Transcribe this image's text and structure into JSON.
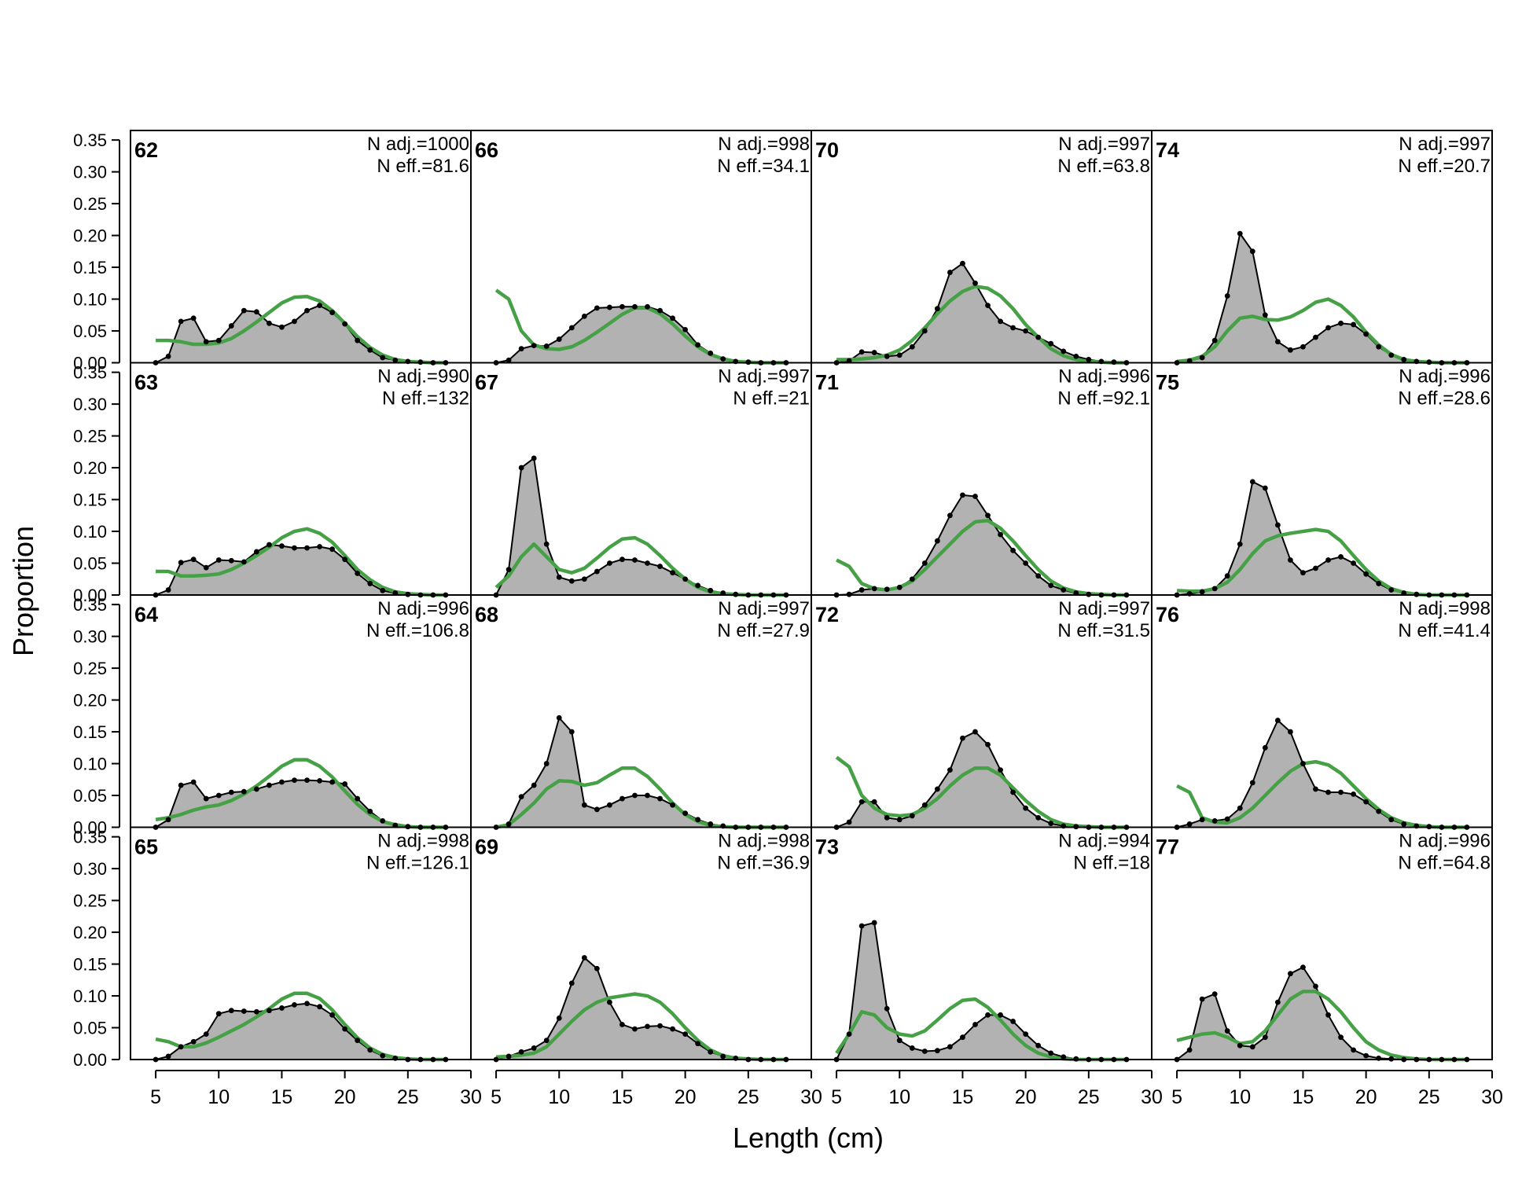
{
  "figure": {
    "xlabel": "Length (cm)",
    "ylabel": "Proportion",
    "background": "#ffffff",
    "colors": {
      "observed_fill": "#b2b2b2",
      "observed_line": "#000000",
      "expected_line": "#46a146",
      "zero_line": "#c8c8c8",
      "frame": "#000000"
    }
  },
  "chart_data": {
    "type": "area",
    "layout": {
      "rows": 4,
      "cols": 4,
      "order": "column-major"
    },
    "xlim": [
      3,
      30
    ],
    "ylim": [
      0,
      0.35
    ],
    "x_ticks": [
      5,
      10,
      15,
      20,
      25,
      30
    ],
    "y_ticks": [
      "0.00",
      "0.05",
      "0.10",
      "0.15",
      "0.20",
      "0.25",
      "0.30",
      "0.35"
    ],
    "x": [
      5,
      6,
      7,
      8,
      9,
      10,
      11,
      12,
      13,
      14,
      15,
      16,
      17,
      18,
      19,
      20,
      21,
      22,
      23,
      24,
      25,
      26,
      27,
      28
    ],
    "series_names": [
      "observed",
      "expected"
    ],
    "panels": [
      {
        "label": "62",
        "n_adj": "N adj.=1000",
        "n_eff": "N eff.=81.6",
        "observed": [
          0,
          0.01,
          0.065,
          0.07,
          0.033,
          0.035,
          0.058,
          0.082,
          0.08,
          0.062,
          0.056,
          0.065,
          0.082,
          0.09,
          0.079,
          0.061,
          0.035,
          0.02,
          0.008,
          0.004,
          0.002,
          0.001,
          0,
          0
        ],
        "expected": [
          0.035,
          0.035,
          0.033,
          0.029,
          0.029,
          0.031,
          0.038,
          0.05,
          0.064,
          0.079,
          0.094,
          0.103,
          0.104,
          0.097,
          0.082,
          0.062,
          0.041,
          0.024,
          0.012,
          0.005,
          0.002,
          0.001,
          0,
          0
        ]
      },
      {
        "label": "63",
        "n_adj": "N adj.=990",
        "n_eff": "N eff.=132",
        "observed": [
          0,
          0.008,
          0.051,
          0.056,
          0.043,
          0.055,
          0.054,
          0.052,
          0.068,
          0.079,
          0.077,
          0.074,
          0.074,
          0.076,
          0.072,
          0.056,
          0.034,
          0.018,
          0.007,
          0.003,
          0.001,
          0,
          0,
          0
        ],
        "expected": [
          0.037,
          0.037,
          0.03,
          0.03,
          0.031,
          0.033,
          0.04,
          0.05,
          0.062,
          0.075,
          0.09,
          0.1,
          0.104,
          0.097,
          0.083,
          0.062,
          0.04,
          0.024,
          0.012,
          0.005,
          0.002,
          0.001,
          0,
          0
        ]
      },
      {
        "label": "64",
        "n_adj": "N adj.=996",
        "n_eff": "N eff.=106.8",
        "observed": [
          0,
          0.012,
          0.066,
          0.071,
          0.045,
          0.05,
          0.055,
          0.056,
          0.06,
          0.066,
          0.071,
          0.074,
          0.074,
          0.073,
          0.071,
          0.068,
          0.045,
          0.025,
          0.01,
          0.003,
          0.001,
          0,
          0,
          0
        ],
        "expected": [
          0.012,
          0.015,
          0.02,
          0.027,
          0.032,
          0.035,
          0.042,
          0.052,
          0.065,
          0.08,
          0.096,
          0.106,
          0.106,
          0.096,
          0.079,
          0.057,
          0.036,
          0.02,
          0.009,
          0.004,
          0.001,
          0,
          0,
          0
        ]
      },
      {
        "label": "65",
        "n_adj": "N adj.=998",
        "n_eff": "N eff.=126.1",
        "observed": [
          0,
          0.005,
          0.02,
          0.028,
          0.04,
          0.072,
          0.077,
          0.076,
          0.075,
          0.077,
          0.081,
          0.086,
          0.088,
          0.083,
          0.07,
          0.048,
          0.03,
          0.015,
          0.006,
          0.002,
          0,
          0,
          0,
          0
        ],
        "expected": [
          0.032,
          0.028,
          0.02,
          0.02,
          0.026,
          0.035,
          0.045,
          0.055,
          0.067,
          0.08,
          0.095,
          0.104,
          0.104,
          0.096,
          0.078,
          0.055,
          0.034,
          0.018,
          0.008,
          0.003,
          0.001,
          0,
          0,
          0
        ]
      },
      {
        "label": "66",
        "n_adj": "N adj.=998",
        "n_eff": "N eff.=34.1",
        "observed": [
          0,
          0.004,
          0.022,
          0.027,
          0.026,
          0.037,
          0.055,
          0.073,
          0.086,
          0.087,
          0.088,
          0.088,
          0.088,
          0.082,
          0.07,
          0.052,
          0.028,
          0.015,
          0.006,
          0.002,
          0.001,
          0,
          0,
          0
        ],
        "expected": [
          0.114,
          0.1,
          0.05,
          0.028,
          0.022,
          0.021,
          0.025,
          0.035,
          0.048,
          0.062,
          0.076,
          0.086,
          0.086,
          0.077,
          0.061,
          0.042,
          0.025,
          0.013,
          0.006,
          0.002,
          0.001,
          0,
          0,
          0
        ]
      },
      {
        "label": "67",
        "n_adj": "N adj.=997",
        "n_eff": "N eff.=21",
        "observed": [
          0,
          0.04,
          0.2,
          0.215,
          0.08,
          0.028,
          0.022,
          0.025,
          0.037,
          0.05,
          0.056,
          0.055,
          0.05,
          0.045,
          0.035,
          0.025,
          0.015,
          0.007,
          0.003,
          0.001,
          0,
          0,
          0,
          0
        ],
        "expected": [
          0.012,
          0.03,
          0.06,
          0.08,
          0.06,
          0.04,
          0.035,
          0.042,
          0.058,
          0.075,
          0.088,
          0.09,
          0.08,
          0.062,
          0.042,
          0.025,
          0.012,
          0.005,
          0.002,
          0.001,
          0,
          0,
          0,
          0
        ]
      },
      {
        "label": "68",
        "n_adj": "N adj.=997",
        "n_eff": "N eff.=27.9",
        "observed": [
          0,
          0.005,
          0.048,
          0.066,
          0.1,
          0.172,
          0.15,
          0.035,
          0.028,
          0.035,
          0.045,
          0.05,
          0.05,
          0.045,
          0.035,
          0.022,
          0.012,
          0.005,
          0.002,
          0,
          0,
          0,
          0,
          0
        ],
        "expected": [
          0,
          0.004,
          0.02,
          0.038,
          0.06,
          0.073,
          0.072,
          0.066,
          0.07,
          0.082,
          0.093,
          0.093,
          0.08,
          0.06,
          0.038,
          0.02,
          0.009,
          0.003,
          0.001,
          0,
          0,
          0,
          0,
          0
        ]
      },
      {
        "label": "69",
        "n_adj": "N adj.=998",
        "n_eff": "N eff.=36.9",
        "observed": [
          0,
          0.005,
          0.012,
          0.018,
          0.03,
          0.065,
          0.12,
          0.16,
          0.143,
          0.09,
          0.055,
          0.048,
          0.052,
          0.053,
          0.048,
          0.04,
          0.025,
          0.012,
          0.005,
          0.002,
          0,
          0,
          0,
          0
        ],
        "expected": [
          0.004,
          0.005,
          0.007,
          0.01,
          0.02,
          0.04,
          0.06,
          0.078,
          0.09,
          0.097,
          0.1,
          0.103,
          0.1,
          0.09,
          0.072,
          0.05,
          0.03,
          0.015,
          0.006,
          0.002,
          0.001,
          0,
          0,
          0
        ]
      },
      {
        "label": "70",
        "n_adj": "N adj.=997",
        "n_eff": "N eff.=63.8",
        "observed": [
          0,
          0.003,
          0.017,
          0.016,
          0.01,
          0.012,
          0.025,
          0.05,
          0.085,
          0.142,
          0.156,
          0.125,
          0.09,
          0.065,
          0.055,
          0.05,
          0.04,
          0.03,
          0.018,
          0.01,
          0.005,
          0.002,
          0.001,
          0
        ],
        "expected": [
          0.005,
          0.005,
          0.006,
          0.008,
          0.012,
          0.02,
          0.035,
          0.055,
          0.077,
          0.097,
          0.112,
          0.12,
          0.117,
          0.105,
          0.085,
          0.06,
          0.04,
          0.022,
          0.011,
          0.005,
          0.002,
          0.001,
          0,
          0
        ]
      },
      {
        "label": "71",
        "n_adj": "N adj.=996",
        "n_eff": "N eff.=92.1",
        "observed": [
          0,
          0.001,
          0.008,
          0.01,
          0.009,
          0.012,
          0.025,
          0.05,
          0.085,
          0.125,
          0.157,
          0.155,
          0.125,
          0.095,
          0.07,
          0.05,
          0.03,
          0.015,
          0.008,
          0.003,
          0.001,
          0,
          0,
          0
        ],
        "expected": [
          0.055,
          0.045,
          0.018,
          0.01,
          0.008,
          0.012,
          0.022,
          0.04,
          0.06,
          0.08,
          0.1,
          0.115,
          0.117,
          0.105,
          0.085,
          0.062,
          0.04,
          0.022,
          0.011,
          0.005,
          0.002,
          0.001,
          0,
          0
        ]
      },
      {
        "label": "72",
        "n_adj": "N adj.=997",
        "n_eff": "N eff.=31.5",
        "observed": [
          0,
          0.008,
          0.04,
          0.04,
          0.015,
          0.012,
          0.018,
          0.035,
          0.06,
          0.09,
          0.14,
          0.15,
          0.13,
          0.09,
          0.055,
          0.03,
          0.015,
          0.006,
          0.002,
          0.001,
          0,
          0,
          0,
          0
        ],
        "expected": [
          0.11,
          0.095,
          0.05,
          0.03,
          0.02,
          0.018,
          0.02,
          0.03,
          0.045,
          0.065,
          0.082,
          0.093,
          0.093,
          0.082,
          0.062,
          0.042,
          0.025,
          0.012,
          0.005,
          0.002,
          0.001,
          0,
          0,
          0
        ]
      },
      {
        "label": "73",
        "n_adj": "N adj.=994",
        "n_eff": "N eff.=18",
        "observed": [
          0,
          0.04,
          0.21,
          0.215,
          0.08,
          0.03,
          0.018,
          0.013,
          0.014,
          0.02,
          0.035,
          0.055,
          0.07,
          0.07,
          0.06,
          0.04,
          0.022,
          0.01,
          0.004,
          0.001,
          0,
          0,
          0,
          0
        ],
        "expected": [
          0.01,
          0.04,
          0.075,
          0.07,
          0.05,
          0.04,
          0.037,
          0.045,
          0.062,
          0.08,
          0.093,
          0.095,
          0.082,
          0.062,
          0.04,
          0.022,
          0.01,
          0.004,
          0.001,
          0,
          0,
          0,
          0,
          0
        ]
      },
      {
        "label": "74",
        "n_adj": "N adj.=997",
        "n_eff": "N eff.=20.7",
        "observed": [
          0,
          0.003,
          0.008,
          0.035,
          0.105,
          0.203,
          0.175,
          0.075,
          0.033,
          0.02,
          0.025,
          0.04,
          0.055,
          0.062,
          0.06,
          0.045,
          0.025,
          0.012,
          0.005,
          0.002,
          0.001,
          0,
          0,
          0
        ],
        "expected": [
          0.002,
          0.004,
          0.01,
          0.025,
          0.05,
          0.07,
          0.073,
          0.068,
          0.067,
          0.072,
          0.082,
          0.095,
          0.1,
          0.09,
          0.072,
          0.048,
          0.028,
          0.013,
          0.005,
          0.002,
          0.001,
          0,
          0,
          0
        ]
      },
      {
        "label": "75",
        "n_adj": "N adj.=996",
        "n_eff": "N eff.=28.6",
        "observed": [
          0,
          0.002,
          0.005,
          0.01,
          0.03,
          0.08,
          0.178,
          0.168,
          0.11,
          0.055,
          0.035,
          0.042,
          0.055,
          0.06,
          0.05,
          0.033,
          0.018,
          0.008,
          0.003,
          0.001,
          0,
          0,
          0,
          0
        ],
        "expected": [
          0.007,
          0.006,
          0.006,
          0.01,
          0.02,
          0.04,
          0.065,
          0.085,
          0.093,
          0.097,
          0.1,
          0.103,
          0.1,
          0.085,
          0.062,
          0.04,
          0.022,
          0.01,
          0.004,
          0.001,
          0,
          0,
          0,
          0
        ]
      },
      {
        "label": "76",
        "n_adj": "N adj.=998",
        "n_eff": "N eff.=41.4",
        "observed": [
          0,
          0.005,
          0.012,
          0.01,
          0.013,
          0.03,
          0.07,
          0.125,
          0.168,
          0.15,
          0.1,
          0.06,
          0.055,
          0.055,
          0.052,
          0.04,
          0.025,
          0.012,
          0.005,
          0.002,
          0.001,
          0,
          0,
          0
        ],
        "expected": [
          0.065,
          0.055,
          0.015,
          0.008,
          0.007,
          0.015,
          0.03,
          0.05,
          0.07,
          0.088,
          0.1,
          0.103,
          0.098,
          0.085,
          0.065,
          0.045,
          0.028,
          0.015,
          0.007,
          0.003,
          0.001,
          0,
          0,
          0
        ]
      },
      {
        "label": "77",
        "n_adj": "N adj.=996",
        "n_eff": "N eff.=64.8",
        "observed": [
          0,
          0.015,
          0.095,
          0.103,
          0.045,
          0.022,
          0.02,
          0.035,
          0.09,
          0.135,
          0.145,
          0.115,
          0.07,
          0.035,
          0.015,
          0.006,
          0.002,
          0.001,
          0,
          0,
          0,
          0,
          0,
          0
        ],
        "expected": [
          0.03,
          0.035,
          0.04,
          0.042,
          0.035,
          0.025,
          0.028,
          0.045,
          0.07,
          0.095,
          0.107,
          0.107,
          0.095,
          0.075,
          0.05,
          0.028,
          0.015,
          0.007,
          0.003,
          0.001,
          0,
          0,
          0,
          0
        ]
      }
    ]
  }
}
